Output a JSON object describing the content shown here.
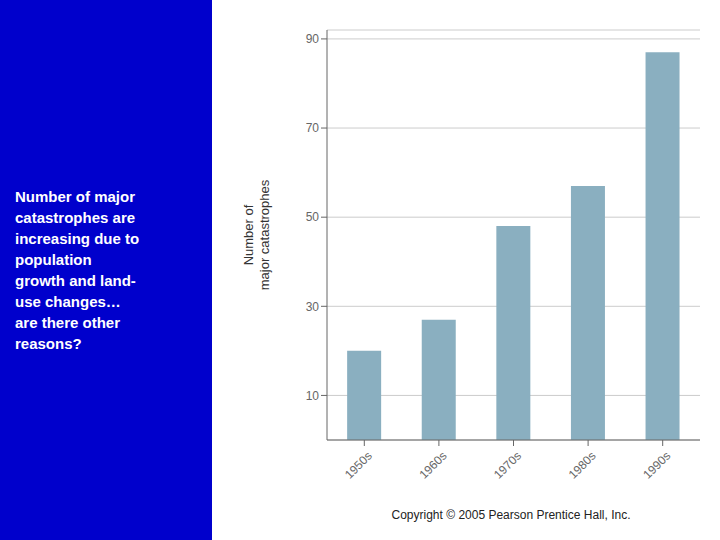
{
  "chart_data": {
    "type": "bar",
    "categories": [
      "1950s",
      "1960s",
      "1970s",
      "1980s",
      "1990s"
    ],
    "values": [
      20,
      27,
      48,
      57,
      87
    ],
    "color": "#8AAFC0",
    "ylabel": "Number of\nmajor catastrophes",
    "ylim": [
      0,
      92
    ],
    "yticks": [
      10,
      30,
      50,
      70,
      90
    ],
    "grid": true,
    "annotations": [
      "Number of major\ncatastrophes are\nincreasing due to\npopulation\ngrowth and land-\nuse changes…\nare there other\nreasons?",
      "Copyright © 2005 Pearson Prentice Hall, Inc."
    ]
  }
}
